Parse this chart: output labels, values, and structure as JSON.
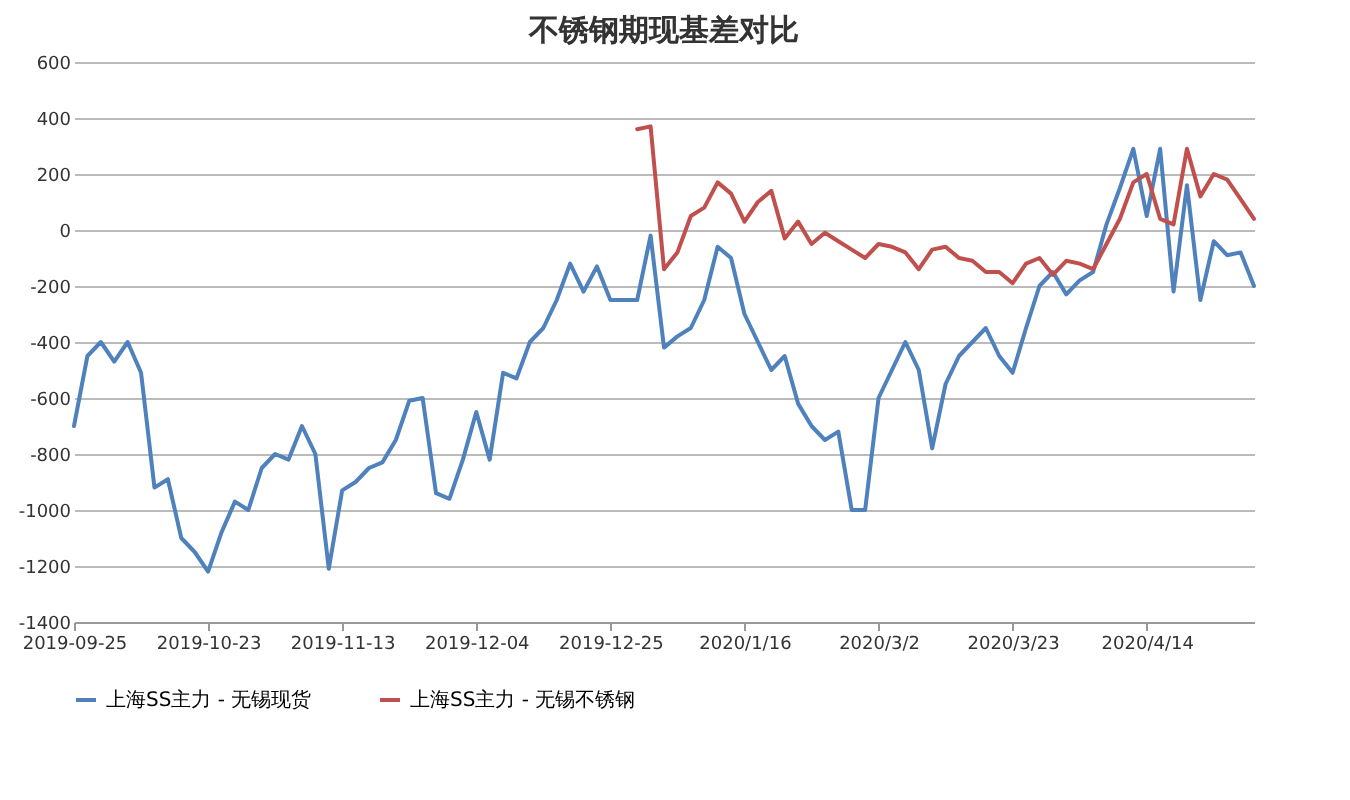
{
  "chart_data": {
    "type": "line",
    "title": "不锈钢期现基差对比",
    "categories": [
      "2019-09-25",
      null,
      null,
      null,
      null,
      null,
      null,
      null,
      null,
      null,
      "2019-10-23",
      null,
      null,
      null,
      null,
      null,
      null,
      null,
      null,
      null,
      "2019-11-13",
      null,
      null,
      null,
      null,
      null,
      null,
      null,
      null,
      null,
      "2019-12-04",
      null,
      null,
      null,
      null,
      null,
      null,
      null,
      null,
      null,
      "2019-12-25",
      null,
      null,
      null,
      null,
      null,
      null,
      null,
      null,
      null,
      "2020/1/16",
      null,
      null,
      null,
      null,
      null,
      null,
      null,
      null,
      null,
      "2020/3/2",
      null,
      null,
      null,
      null,
      null,
      null,
      null,
      null,
      null,
      "2020/3/23",
      null,
      null,
      null,
      null,
      null,
      null,
      null,
      null,
      null,
      "2020/4/14",
      null,
      null,
      null,
      null,
      null,
      null,
      null,
      null
    ],
    "series": [
      {
        "name": "上海SS主力 - 无锡现货",
        "color": "#4f81bd",
        "values": [
          -700,
          -450,
          -400,
          -470,
          -400,
          -510,
          -920,
          -890,
          -1100,
          -1150,
          -1220,
          -1080,
          -970,
          -1000,
          -850,
          -800,
          -820,
          -700,
          -800,
          -1210,
          -930,
          -900,
          -850,
          -830,
          -750,
          -610,
          -600,
          -940,
          -960,
          -820,
          -650,
          -820,
          -510,
          -530,
          -400,
          -350,
          -250,
          -120,
          -220,
          -130,
          -250,
          -250,
          -250,
          -20,
          -420,
          -380,
          -350,
          -250,
          -60,
          -100,
          -300,
          -400,
          -500,
          -450,
          -620,
          -700,
          -750,
          -720,
          -1000,
          -1000,
          -600,
          -500,
          -400,
          -500,
          -780,
          -550,
          -450,
          -400,
          -350,
          -450,
          -510,
          -350,
          -200,
          -150,
          -230,
          -180,
          -150,
          20,
          150,
          290,
          50,
          290,
          -220,
          160,
          -250,
          -40,
          -90,
          -80,
          -200
        ]
      },
      {
        "name": "上海SS主力 - 无锡不锈钢",
        "color": "#c0504d",
        "values": [
          null,
          null,
          null,
          null,
          null,
          null,
          null,
          null,
          null,
          null,
          null,
          null,
          null,
          null,
          null,
          null,
          null,
          null,
          null,
          null,
          null,
          null,
          null,
          null,
          null,
          null,
          null,
          null,
          null,
          null,
          null,
          null,
          null,
          null,
          null,
          null,
          null,
          null,
          null,
          null,
          null,
          null,
          360,
          370,
          -140,
          -80,
          50,
          80,
          170,
          130,
          30,
          100,
          140,
          -30,
          30,
          -50,
          -10,
          -40,
          -70,
          -100,
          -50,
          -60,
          -80,
          -140,
          -70,
          -60,
          -100,
          -110,
          -150,
          -150,
          -190,
          -120,
          -100,
          -160,
          -110,
          -120,
          -140,
          -50,
          40,
          170,
          200,
          40,
          20,
          290,
          120,
          200,
          180,
          110,
          40
        ]
      }
    ],
    "ylim": [
      -1400,
      600
    ],
    "yticks": [
      -1400,
      -1200,
      -1000,
      -800,
      -600,
      -400,
      -200,
      0,
      200,
      400,
      600
    ],
    "grid": "y",
    "legend": "bottom",
    "marker": "none",
    "line_style": "solid"
  }
}
